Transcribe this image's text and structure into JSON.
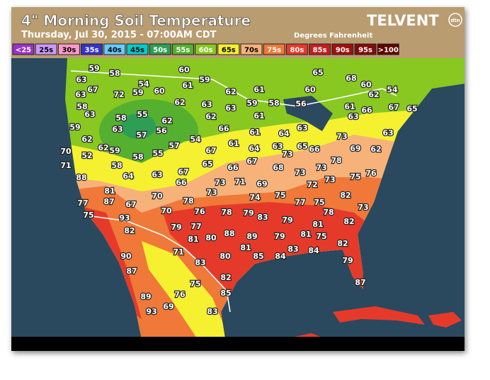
{
  "header": {
    "title": "4\" Morning Soil Temperature",
    "subtitle": "Thursday, Jul 30, 2015 - 07:00AM CDT",
    "units": "Degrees Fahrenheit",
    "logo": "TELVENT",
    "logo_badge": "dtn"
  },
  "legend": [
    {
      "label": "<25",
      "color": "#9933cc"
    },
    {
      "label": "25s",
      "color": "#cc99ff"
    },
    {
      "label": "30s",
      "color": "#ff99cc"
    },
    {
      "label": "35s",
      "color": "#3333cc"
    },
    {
      "label": "40s",
      "color": "#66ccff"
    },
    {
      "label": "45s",
      "color": "#00cccc"
    },
    {
      "label": "50s",
      "color": "#2e9e55"
    },
    {
      "label": "55s",
      "color": "#55b030"
    },
    {
      "label": "60s",
      "color": "#88c820"
    },
    {
      "label": "65s",
      "color": "#f5f030"
    },
    {
      "label": "70s",
      "color": "#f7b27a"
    },
    {
      "label": "75s",
      "color": "#f07838"
    },
    {
      "label": "80s",
      "color": "#e53a2a"
    },
    {
      "label": "85s",
      "color": "#c41e1e"
    },
    {
      "label": "90s",
      "color": "#a01010"
    },
    {
      "label": "95s",
      "color": "#800c0c"
    },
    {
      "label": ">100",
      "color": "#600000"
    }
  ],
  "stations": [
    59,
    58,
    60,
    65,
    63,
    54,
    61,
    59,
    68,
    60,
    54,
    67,
    72,
    59,
    60,
    62,
    61,
    60,
    62,
    67,
    63,
    65,
    58,
    63,
    62,
    63,
    62,
    63,
    59,
    58,
    56,
    61,
    66,
    63,
    62,
    55,
    58,
    63,
    57,
    56,
    61,
    63,
    66,
    61,
    64,
    59,
    62,
    62,
    59,
    58,
    55,
    57,
    54,
    67,
    61,
    64,
    63,
    73,
    65,
    66,
    73,
    69,
    62,
    63,
    70,
    52,
    71,
    58,
    64,
    63,
    67,
    65,
    66,
    67,
    68,
    73,
    73,
    78,
    75,
    76,
    88,
    66,
    73,
    73,
    71,
    69,
    72,
    73,
    82,
    78,
    74,
    75,
    77,
    75,
    73,
    77,
    87,
    67,
    70,
    70,
    81,
    75,
    93,
    76,
    78,
    79,
    83,
    79,
    78,
    82,
    81,
    82,
    79,
    77,
    88,
    89,
    81,
    80,
    79,
    81,
    75,
    81,
    83,
    84,
    82,
    90,
    71,
    80,
    85,
    84,
    83,
    79,
    87,
    82,
    75,
    87,
    85,
    89,
    76,
    69,
    93,
    83
  ]
}
